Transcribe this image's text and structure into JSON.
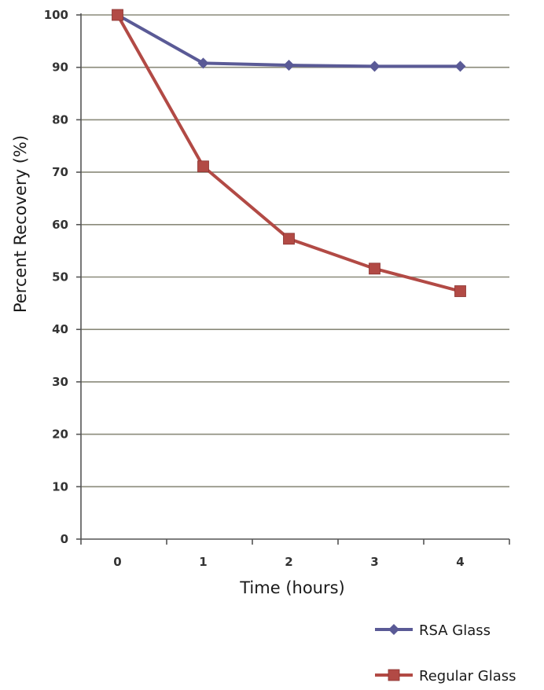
{
  "chart_data": {
    "type": "line",
    "xlabel": "Time (hours)",
    "ylabel": "Percent Recovery (%)",
    "categories": [
      "0",
      "1",
      "2",
      "3",
      "4"
    ],
    "ylim": [
      0,
      100
    ],
    "yticks": [
      0,
      10,
      20,
      30,
      40,
      50,
      60,
      70,
      80,
      90,
      100
    ],
    "grid": "horizontal",
    "legend_position": "bottom-right",
    "series": [
      {
        "name": "RSA Glass",
        "values": [
          100,
          90.8,
          90.4,
          90.2,
          90.2
        ],
        "color": "#5a5a96",
        "marker": "diamond"
      },
      {
        "name": "Regular Glass",
        "values": [
          100,
          71.1,
          57.3,
          51.6,
          47.3
        ],
        "color": "#b24a45",
        "marker": "square"
      }
    ]
  }
}
